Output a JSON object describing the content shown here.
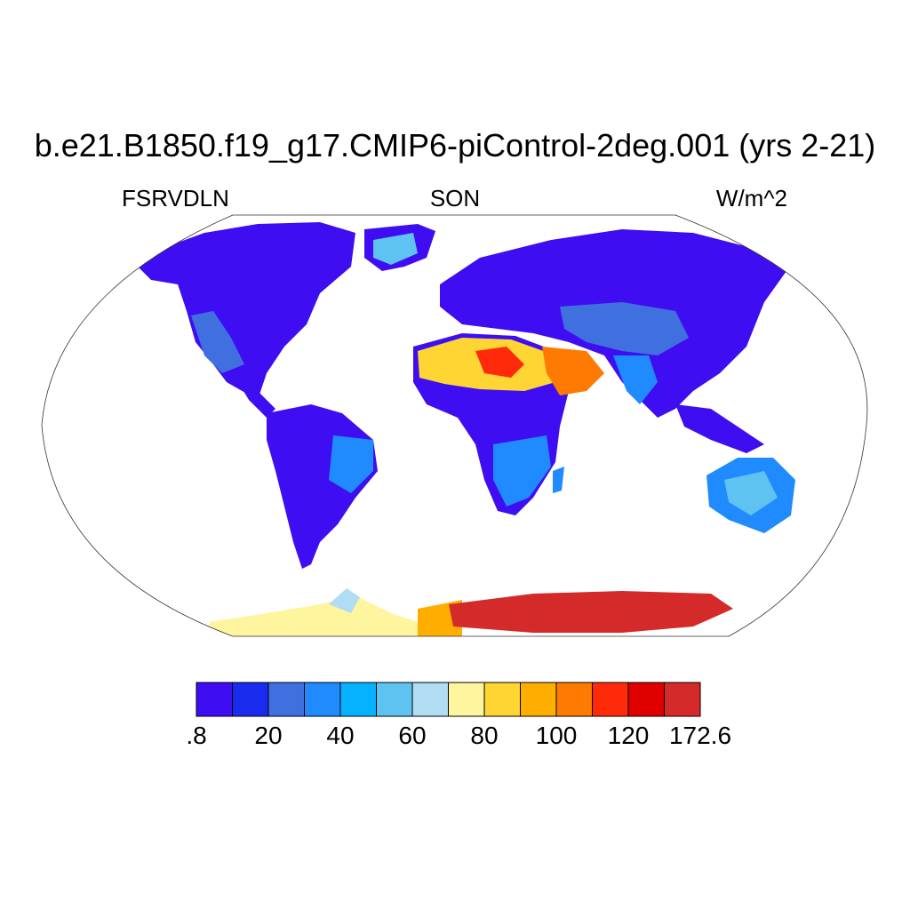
{
  "title": "b.e21.B1850.f19_g17.CMIP6-piControl-2deg.001 (yrs 2-21)",
  "variable": "FSRVDLN",
  "season": "SON",
  "units": "W/m^2",
  "colorbar": {
    "colors": [
      "#3f0df2",
      "#1a2bf0",
      "#4070e0",
      "#1f8bff",
      "#06b2ff",
      "#5ec3f0",
      "#b0dcf4",
      "#fff59e",
      "#ffd533",
      "#ffae00",
      "#ff7a00",
      "#ff2a0a",
      "#e00000",
      "#d42a2a"
    ],
    "labels": [
      ".8",
      "20",
      "40",
      "60",
      "80",
      "100",
      "120",
      "172.6"
    ]
  },
  "map_legend": {
    "ocean_color": "#ffffff",
    "projection": "Robinson"
  }
}
